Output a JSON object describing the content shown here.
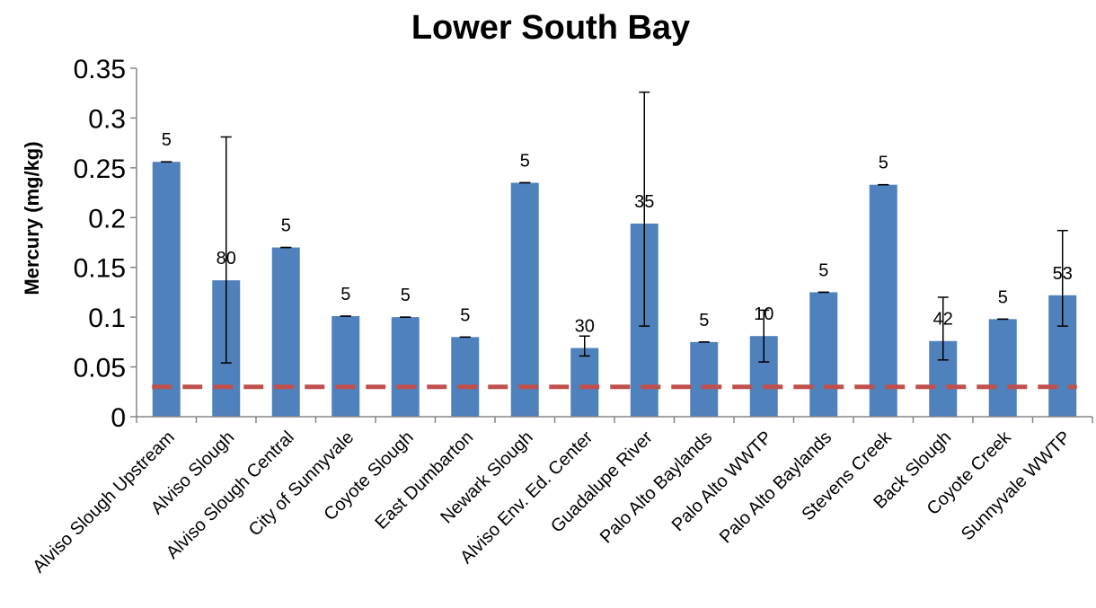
{
  "chart_data": {
    "type": "bar",
    "title": "Lower South Bay",
    "xlabel": "",
    "ylabel": "Mercury (mg/kg)",
    "ylim": [
      0,
      0.35
    ],
    "yticks": [
      "0",
      "0.05",
      "0.1",
      "0.15",
      "0.2",
      "0.25",
      "0.3",
      "0.35"
    ],
    "categories": [
      "Alviso Slough Upstream",
      "Alviso Slough",
      "Alviso Slough Central",
      "City of Sunnyvale",
      "Coyote Slough",
      "East Dumbarton",
      "Newark Slough",
      "Alviso Env. Ed. Center",
      "Guadalupe River",
      "Palo Alto Baylands",
      "Palo Alto WWTP",
      "Palo Alto Baylands",
      "Stevens Creek",
      "Back Slough",
      "Coyote Creek",
      "Sunnyvale WWTP"
    ],
    "values": [
      0.256,
      0.137,
      0.17,
      0.101,
      0.1,
      0.08,
      0.235,
      0.069,
      0.194,
      0.075,
      0.081,
      0.125,
      0.233,
      0.076,
      0.098,
      0.122
    ],
    "error_low": [
      0.256,
      0.054,
      0.17,
      0.101,
      0.1,
      0.08,
      0.235,
      0.061,
      0.091,
      0.075,
      0.055,
      0.125,
      0.233,
      0.057,
      0.098,
      0.091
    ],
    "error_high": [
      0.256,
      0.281,
      0.17,
      0.101,
      0.1,
      0.08,
      0.235,
      0.081,
      0.326,
      0.075,
      0.107,
      0.125,
      0.233,
      0.12,
      0.098,
      0.187
    ],
    "data_labels": [
      "5",
      "80",
      "5",
      "5",
      "5",
      "5",
      "5",
      "30",
      "35",
      "5",
      "10",
      "5",
      "5",
      "42",
      "5",
      "53"
    ],
    "reference_line": {
      "value": 0.03,
      "style": "dashed",
      "color": "#c0504d"
    },
    "grid": false,
    "legend": "none",
    "colors": {
      "bar": "#4f81bd",
      "axis": "#868686",
      "text": "#000000"
    }
  }
}
